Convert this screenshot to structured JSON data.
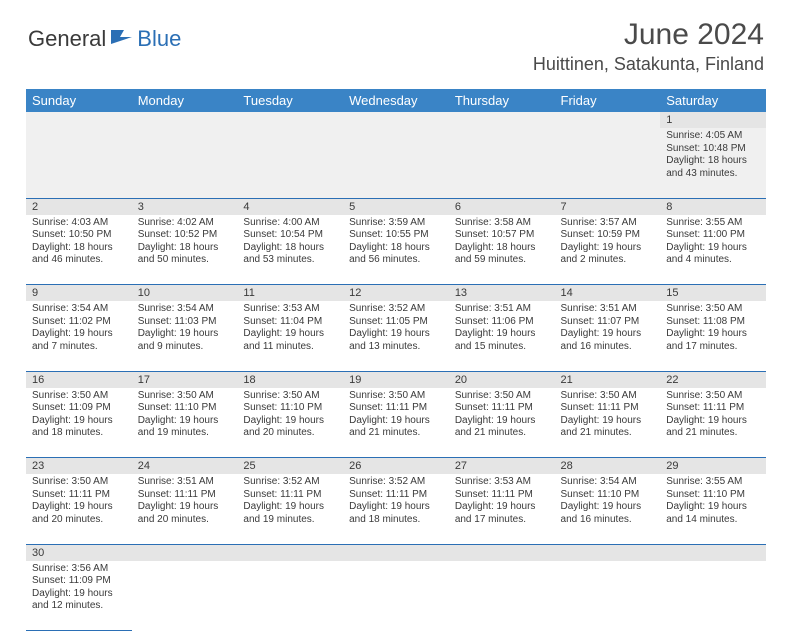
{
  "brand": {
    "part1": "General",
    "part2": "Blue"
  },
  "title": "June 2024",
  "location": "Huittinen, Satakunta, Finland",
  "days": [
    "Sunday",
    "Monday",
    "Tuesday",
    "Wednesday",
    "Thursday",
    "Friday",
    "Saturday"
  ],
  "colors": {
    "header_bg": "#3a84c6",
    "header_text": "#ffffff",
    "rule": "#2b6fb5",
    "daynum_bg": "#e5e5e5",
    "text": "#3a3a3a",
    "brand_blue": "#2b6fb5"
  },
  "typography": {
    "title_fontsize": 30,
    "location_fontsize": 18,
    "dayheader_fontsize": 13,
    "cell_fontsize": 10
  },
  "weeks": [
    [
      null,
      null,
      null,
      null,
      null,
      null,
      {
        "d": "1",
        "sr": "Sunrise: 4:05 AM",
        "ss": "Sunset: 10:48 PM",
        "dl": "Daylight: 18 hours and 43 minutes."
      }
    ],
    [
      {
        "d": "2",
        "sr": "Sunrise: 4:03 AM",
        "ss": "Sunset: 10:50 PM",
        "dl": "Daylight: 18 hours and 46 minutes."
      },
      {
        "d": "3",
        "sr": "Sunrise: 4:02 AM",
        "ss": "Sunset: 10:52 PM",
        "dl": "Daylight: 18 hours and 50 minutes."
      },
      {
        "d": "4",
        "sr": "Sunrise: 4:00 AM",
        "ss": "Sunset: 10:54 PM",
        "dl": "Daylight: 18 hours and 53 minutes."
      },
      {
        "d": "5",
        "sr": "Sunrise: 3:59 AM",
        "ss": "Sunset: 10:55 PM",
        "dl": "Daylight: 18 hours and 56 minutes."
      },
      {
        "d": "6",
        "sr": "Sunrise: 3:58 AM",
        "ss": "Sunset: 10:57 PM",
        "dl": "Daylight: 18 hours and 59 minutes."
      },
      {
        "d": "7",
        "sr": "Sunrise: 3:57 AM",
        "ss": "Sunset: 10:59 PM",
        "dl": "Daylight: 19 hours and 2 minutes."
      },
      {
        "d": "8",
        "sr": "Sunrise: 3:55 AM",
        "ss": "Sunset: 11:00 PM",
        "dl": "Daylight: 19 hours and 4 minutes."
      }
    ],
    [
      {
        "d": "9",
        "sr": "Sunrise: 3:54 AM",
        "ss": "Sunset: 11:02 PM",
        "dl": "Daylight: 19 hours and 7 minutes."
      },
      {
        "d": "10",
        "sr": "Sunrise: 3:54 AM",
        "ss": "Sunset: 11:03 PM",
        "dl": "Daylight: 19 hours and 9 minutes."
      },
      {
        "d": "11",
        "sr": "Sunrise: 3:53 AM",
        "ss": "Sunset: 11:04 PM",
        "dl": "Daylight: 19 hours and 11 minutes."
      },
      {
        "d": "12",
        "sr": "Sunrise: 3:52 AM",
        "ss": "Sunset: 11:05 PM",
        "dl": "Daylight: 19 hours and 13 minutes."
      },
      {
        "d": "13",
        "sr": "Sunrise: 3:51 AM",
        "ss": "Sunset: 11:06 PM",
        "dl": "Daylight: 19 hours and 15 minutes."
      },
      {
        "d": "14",
        "sr": "Sunrise: 3:51 AM",
        "ss": "Sunset: 11:07 PM",
        "dl": "Daylight: 19 hours and 16 minutes."
      },
      {
        "d": "15",
        "sr": "Sunrise: 3:50 AM",
        "ss": "Sunset: 11:08 PM",
        "dl": "Daylight: 19 hours and 17 minutes."
      }
    ],
    [
      {
        "d": "16",
        "sr": "Sunrise: 3:50 AM",
        "ss": "Sunset: 11:09 PM",
        "dl": "Daylight: 19 hours and 18 minutes."
      },
      {
        "d": "17",
        "sr": "Sunrise: 3:50 AM",
        "ss": "Sunset: 11:10 PM",
        "dl": "Daylight: 19 hours and 19 minutes."
      },
      {
        "d": "18",
        "sr": "Sunrise: 3:50 AM",
        "ss": "Sunset: 11:10 PM",
        "dl": "Daylight: 19 hours and 20 minutes."
      },
      {
        "d": "19",
        "sr": "Sunrise: 3:50 AM",
        "ss": "Sunset: 11:11 PM",
        "dl": "Daylight: 19 hours and 21 minutes."
      },
      {
        "d": "20",
        "sr": "Sunrise: 3:50 AM",
        "ss": "Sunset: 11:11 PM",
        "dl": "Daylight: 19 hours and 21 minutes."
      },
      {
        "d": "21",
        "sr": "Sunrise: 3:50 AM",
        "ss": "Sunset: 11:11 PM",
        "dl": "Daylight: 19 hours and 21 minutes."
      },
      {
        "d": "22",
        "sr": "Sunrise: 3:50 AM",
        "ss": "Sunset: 11:11 PM",
        "dl": "Daylight: 19 hours and 21 minutes."
      }
    ],
    [
      {
        "d": "23",
        "sr": "Sunrise: 3:50 AM",
        "ss": "Sunset: 11:11 PM",
        "dl": "Daylight: 19 hours and 20 minutes."
      },
      {
        "d": "24",
        "sr": "Sunrise: 3:51 AM",
        "ss": "Sunset: 11:11 PM",
        "dl": "Daylight: 19 hours and 20 minutes."
      },
      {
        "d": "25",
        "sr": "Sunrise: 3:52 AM",
        "ss": "Sunset: 11:11 PM",
        "dl": "Daylight: 19 hours and 19 minutes."
      },
      {
        "d": "26",
        "sr": "Sunrise: 3:52 AM",
        "ss": "Sunset: 11:11 PM",
        "dl": "Daylight: 19 hours and 18 minutes."
      },
      {
        "d": "27",
        "sr": "Sunrise: 3:53 AM",
        "ss": "Sunset: 11:11 PM",
        "dl": "Daylight: 19 hours and 17 minutes."
      },
      {
        "d": "28",
        "sr": "Sunrise: 3:54 AM",
        "ss": "Sunset: 11:10 PM",
        "dl": "Daylight: 19 hours and 16 minutes."
      },
      {
        "d": "29",
        "sr": "Sunrise: 3:55 AM",
        "ss": "Sunset: 11:10 PM",
        "dl": "Daylight: 19 hours and 14 minutes."
      }
    ],
    [
      {
        "d": "30",
        "sr": "Sunrise: 3:56 AM",
        "ss": "Sunset: 11:09 PM",
        "dl": "Daylight: 19 hours and 12 minutes."
      },
      null,
      null,
      null,
      null,
      null,
      null
    ]
  ]
}
